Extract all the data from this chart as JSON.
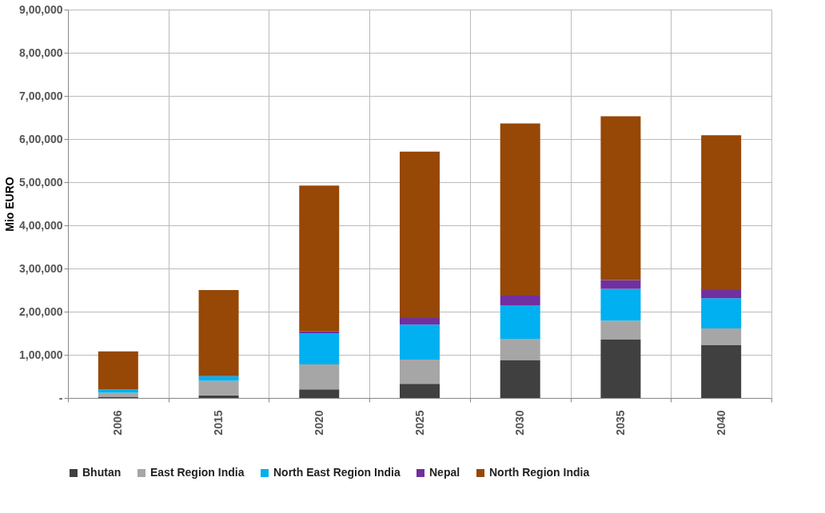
{
  "chart_data": {
    "type": "bar",
    "stacked": true,
    "ylabel": "Mio EURO",
    "categories": [
      "2006",
      "2015",
      "2020",
      "2025",
      "2030",
      "2035",
      "2040"
    ],
    "ylim": [
      0,
      900000
    ],
    "yticks": [
      {
        "value": 0,
        "label": "-"
      },
      {
        "value": 100000,
        "label": "1,00,000"
      },
      {
        "value": 200000,
        "label": "2,00,000"
      },
      {
        "value": 300000,
        "label": "3,00,000"
      },
      {
        "value": 400000,
        "label": "4,00,000"
      },
      {
        "value": 500000,
        "label": "5,00,000"
      },
      {
        "value": 600000,
        "label": "6,00,000"
      },
      {
        "value": 700000,
        "label": "7,00,000"
      },
      {
        "value": 800000,
        "label": "8,00,000"
      },
      {
        "value": 900000,
        "label": "9,00,000"
      }
    ],
    "grid": true,
    "legend": "bottom",
    "series": [
      {
        "name": "Bhutan",
        "color": "#404040",
        "values": [
          2000,
          6000,
          20000,
          33000,
          88000,
          135000,
          122000
        ]
      },
      {
        "name": "East Region India",
        "color": "#a6a6a6",
        "values": [
          10000,
          34000,
          58000,
          56000,
          49000,
          44000,
          39000
        ]
      },
      {
        "name": "North East Region India",
        "color": "#00b0f0",
        "values": [
          7000,
          10000,
          71000,
          81000,
          78000,
          74000,
          70000
        ]
      },
      {
        "name": "Nepal",
        "color": "#7030a0",
        "values": [
          1000,
          1000,
          5000,
          15000,
          22000,
          20000,
          19000
        ]
      },
      {
        "name": "North Region India",
        "color": "#974706",
        "values": [
          88000,
          199000,
          338000,
          386000,
          399000,
          380000,
          359000
        ]
      }
    ]
  }
}
